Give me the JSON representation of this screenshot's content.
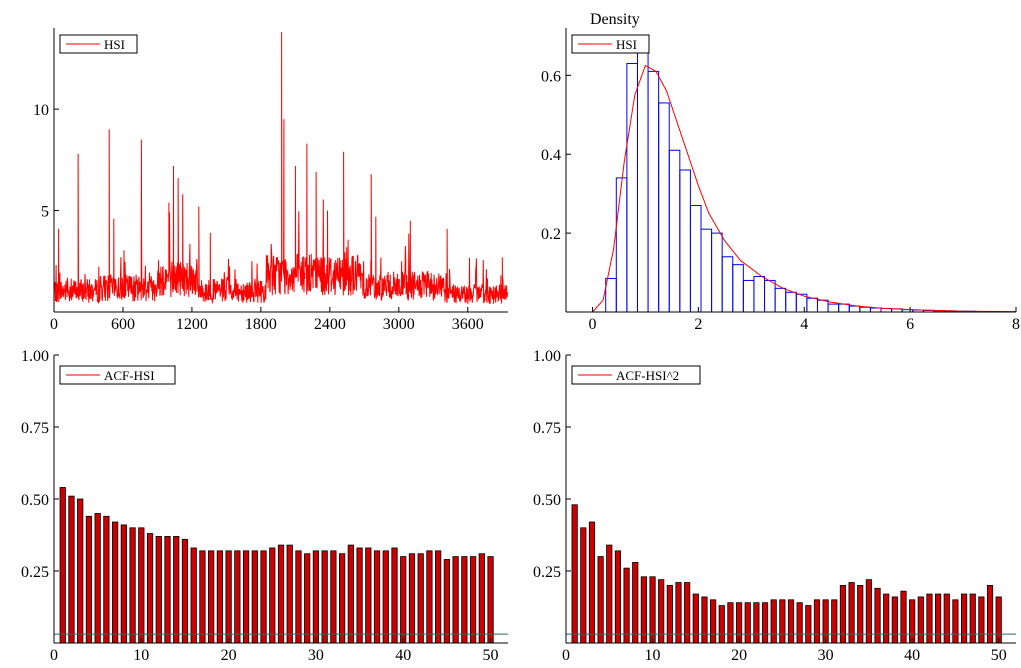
{
  "colors": {
    "line": "#ff0000",
    "hist": "#0000ff",
    "bar_fill": "#cc0000",
    "bar_edge": "#000000",
    "ci": "#336666"
  },
  "chart_data": [
    {
      "type": "line",
      "legend": "HSI",
      "xlim": [
        0,
        3950
      ],
      "ylim": [
        0,
        14
      ],
      "xticks": [
        "0",
        "600",
        "1200",
        "1800",
        "2400",
        "3000",
        "3600"
      ],
      "xtick_values": [
        0,
        600,
        1200,
        1800,
        2400,
        3000,
        3600
      ],
      "yticks": [
        "5",
        "10"
      ],
      "ytick_values": [
        5,
        10
      ],
      "n_obs": 3950,
      "spikes": [
        {
          "x": 40,
          "y": 4.1
        },
        {
          "x": 210,
          "y": 7.8
        },
        {
          "x": 480,
          "y": 9.0
        },
        {
          "x": 520,
          "y": 4.6
        },
        {
          "x": 760,
          "y": 8.5
        },
        {
          "x": 1000,
          "y": 5.4
        },
        {
          "x": 1040,
          "y": 7.2
        },
        {
          "x": 1080,
          "y": 6.6
        },
        {
          "x": 1120,
          "y": 5.8
        },
        {
          "x": 1260,
          "y": 5.2
        },
        {
          "x": 1360,
          "y": 3.9
        },
        {
          "x": 1980,
          "y": 13.8
        },
        {
          "x": 2000,
          "y": 9.5
        },
        {
          "x": 2100,
          "y": 7.2
        },
        {
          "x": 2200,
          "y": 8.3
        },
        {
          "x": 2280,
          "y": 6.9
        },
        {
          "x": 2380,
          "y": 5.0
        },
        {
          "x": 2520,
          "y": 7.9
        },
        {
          "x": 2760,
          "y": 6.8
        },
        {
          "x": 2800,
          "y": 4.7
        },
        {
          "x": 3100,
          "y": 4.5
        },
        {
          "x": 3420,
          "y": 4.1
        },
        {
          "x": 3900,
          "y": 2.7
        }
      ],
      "bursts": [
        {
          "from": 0,
          "to": 400,
          "level": 1.3
        },
        {
          "from": 400,
          "to": 900,
          "level": 1.5
        },
        {
          "from": 900,
          "to": 1250,
          "level": 2.1
        },
        {
          "from": 1250,
          "to": 1850,
          "level": 1.3
        },
        {
          "from": 1850,
          "to": 2700,
          "level": 2.3
        },
        {
          "from": 2700,
          "to": 3400,
          "level": 1.6
        },
        {
          "from": 3400,
          "to": 3950,
          "level": 1.1
        }
      ]
    },
    {
      "type": "bar",
      "title": "Density",
      "legend": "HSI",
      "xlim": [
        -0.5,
        8.0
      ],
      "ylim": [
        0,
        0.72
      ],
      "xticks": [
        "0",
        "2",
        "4",
        "6",
        "8"
      ],
      "xtick_values": [
        0,
        2,
        4,
        6,
        8
      ],
      "yticks": [
        "0.2",
        "0.4",
        "0.6"
      ],
      "ytick_values": [
        0.2,
        0.4,
        0.6
      ],
      "bin_start": 0.25,
      "bin_width": 0.2,
      "values": [
        0.085,
        0.34,
        0.63,
        0.69,
        0.61,
        0.53,
        0.41,
        0.36,
        0.27,
        0.21,
        0.2,
        0.14,
        0.12,
        0.08,
        0.09,
        0.08,
        0.06,
        0.05,
        0.045,
        0.035,
        0.03,
        0.02,
        0.02,
        0.015,
        0.012,
        0.01,
        0.009,
        0.008,
        0.006,
        0.005,
        0.004,
        0.003,
        0.003,
        0.002,
        0.002
      ],
      "curve": [
        [
          0.0,
          0.0
        ],
        [
          0.2,
          0.03
        ],
        [
          0.4,
          0.16
        ],
        [
          0.6,
          0.38
        ],
        [
          0.8,
          0.55
        ],
        [
          1.0,
          0.625
        ],
        [
          1.2,
          0.61
        ],
        [
          1.4,
          0.56
        ],
        [
          1.6,
          0.48
        ],
        [
          1.8,
          0.4
        ],
        [
          2.0,
          0.32
        ],
        [
          2.2,
          0.25
        ],
        [
          2.5,
          0.18
        ],
        [
          2.8,
          0.13
        ],
        [
          3.2,
          0.09
        ],
        [
          3.6,
          0.06
        ],
        [
          4.0,
          0.04
        ],
        [
          4.5,
          0.025
        ],
        [
          5.0,
          0.015
        ],
        [
          5.5,
          0.009
        ],
        [
          6.0,
          0.006
        ],
        [
          7.0,
          0.002
        ],
        [
          8.0,
          0.001
        ]
      ]
    },
    {
      "type": "bar",
      "legend": "ACF-HSI",
      "xlim": [
        0,
        52
      ],
      "ylim": [
        0,
        1.0
      ],
      "xticks": [
        "0",
        "10",
        "20",
        "30",
        "40",
        "50"
      ],
      "xtick_values": [
        0,
        10,
        20,
        30,
        40,
        50
      ],
      "yticks": [
        "0.25",
        "0.50",
        "0.75",
        "1.00"
      ],
      "ytick_values": [
        0.25,
        0.5,
        0.75,
        1.0
      ],
      "ci": 0.031,
      "values": [
        0.54,
        0.51,
        0.5,
        0.44,
        0.45,
        0.44,
        0.42,
        0.41,
        0.4,
        0.4,
        0.38,
        0.37,
        0.37,
        0.37,
        0.36,
        0.33,
        0.32,
        0.32,
        0.32,
        0.32,
        0.32,
        0.32,
        0.32,
        0.32,
        0.33,
        0.34,
        0.34,
        0.32,
        0.31,
        0.32,
        0.32,
        0.32,
        0.31,
        0.34,
        0.33,
        0.33,
        0.32,
        0.32,
        0.33,
        0.3,
        0.31,
        0.31,
        0.32,
        0.32,
        0.29,
        0.3,
        0.3,
        0.3,
        0.31,
        0.3
      ]
    },
    {
      "type": "bar",
      "legend": "ACF-HSI^2",
      "xlim": [
        0,
        52
      ],
      "ylim": [
        0,
        1.0
      ],
      "xticks": [
        "0",
        "10",
        "20",
        "30",
        "40",
        "50"
      ],
      "xtick_values": [
        0,
        10,
        20,
        30,
        40,
        50
      ],
      "yticks": [
        "0.25",
        "0.50",
        "0.75",
        "1.00"
      ],
      "ytick_values": [
        0.25,
        0.5,
        0.75,
        1.0
      ],
      "ci": 0.031,
      "values": [
        0.48,
        0.4,
        0.42,
        0.3,
        0.34,
        0.32,
        0.26,
        0.28,
        0.23,
        0.23,
        0.22,
        0.2,
        0.21,
        0.21,
        0.17,
        0.16,
        0.15,
        0.13,
        0.14,
        0.14,
        0.14,
        0.14,
        0.14,
        0.15,
        0.15,
        0.15,
        0.14,
        0.13,
        0.15,
        0.15,
        0.15,
        0.2,
        0.21,
        0.2,
        0.22,
        0.19,
        0.17,
        0.16,
        0.18,
        0.15,
        0.16,
        0.17,
        0.17,
        0.17,
        0.15,
        0.17,
        0.17,
        0.16,
        0.2,
        0.16
      ]
    }
  ]
}
